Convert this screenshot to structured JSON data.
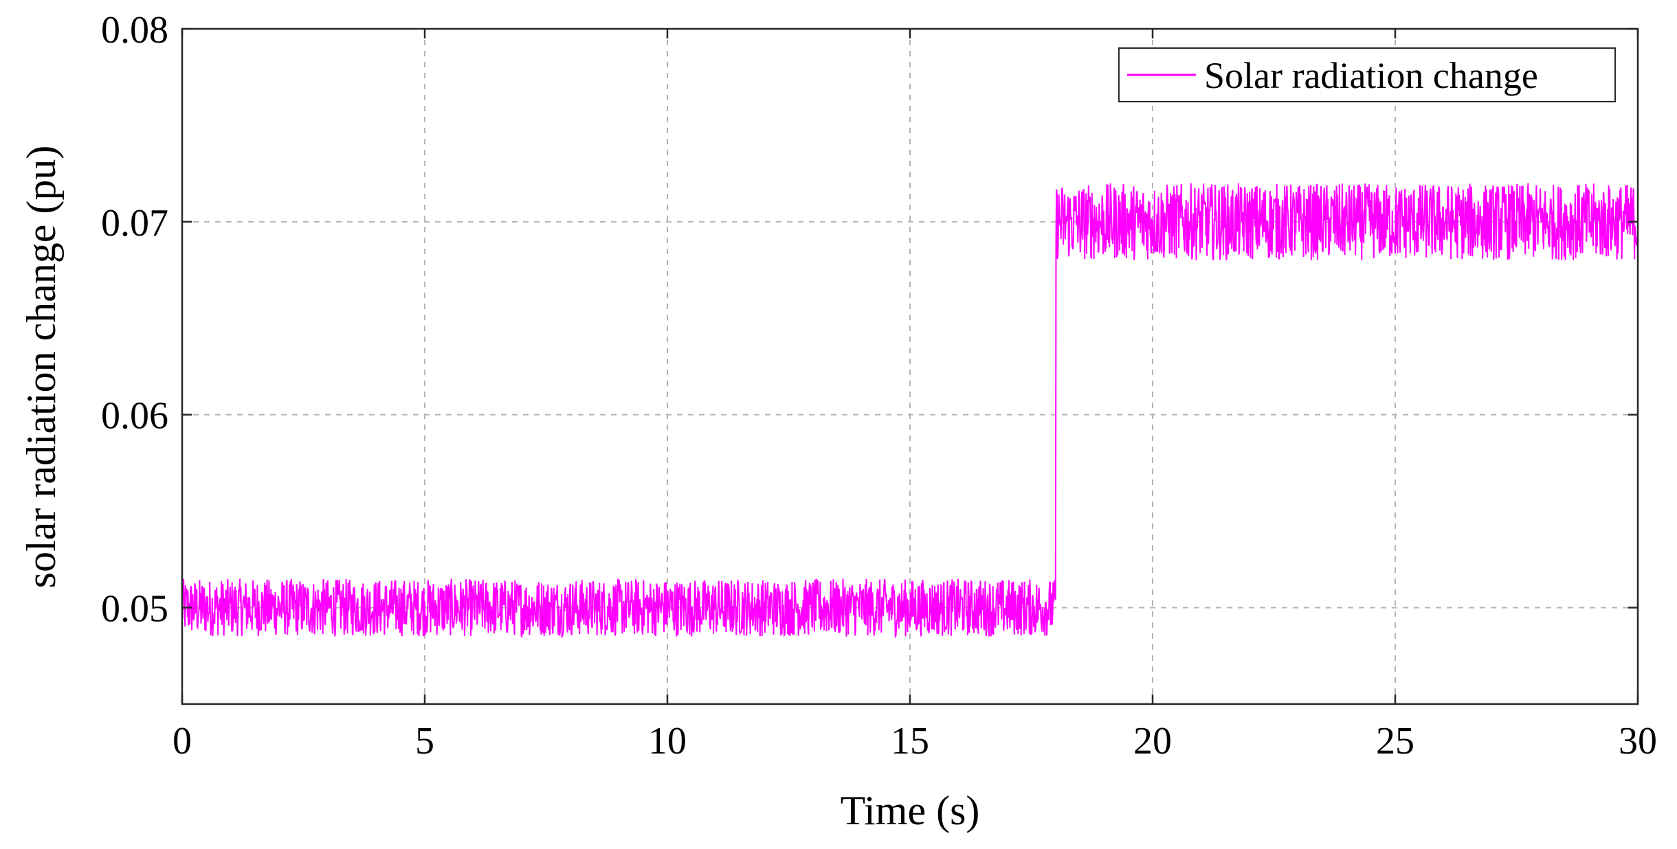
{
  "chart_data": {
    "type": "line",
    "xlabel": "Time (s)",
    "ylabel": "solar radiation change (pu)",
    "xlim": [
      0,
      30
    ],
    "ylim": [
      0.045,
      0.08
    ],
    "xticks": [
      0,
      5,
      10,
      15,
      20,
      25,
      30
    ],
    "yticks": [
      0.05,
      0.06,
      0.07,
      0.08
    ],
    "xtick_labels": [
      "0",
      "5",
      "10",
      "15",
      "20",
      "25",
      "30"
    ],
    "ytick_labels": [
      "0.05",
      "0.06",
      "0.07",
      "0.08"
    ],
    "grid": true,
    "legend_position": "top-right",
    "series": [
      {
        "name": "Solar radiation change",
        "color": "#ff00ff",
        "segments": [
          {
            "x_start": 0,
            "x_end": 18,
            "mean": 0.05,
            "min": 0.0485,
            "max": 0.0515
          },
          {
            "x_start": 18,
            "x_end": 30,
            "mean": 0.07,
            "min": 0.068,
            "max": 0.072
          }
        ],
        "step_at": 18
      }
    ]
  }
}
